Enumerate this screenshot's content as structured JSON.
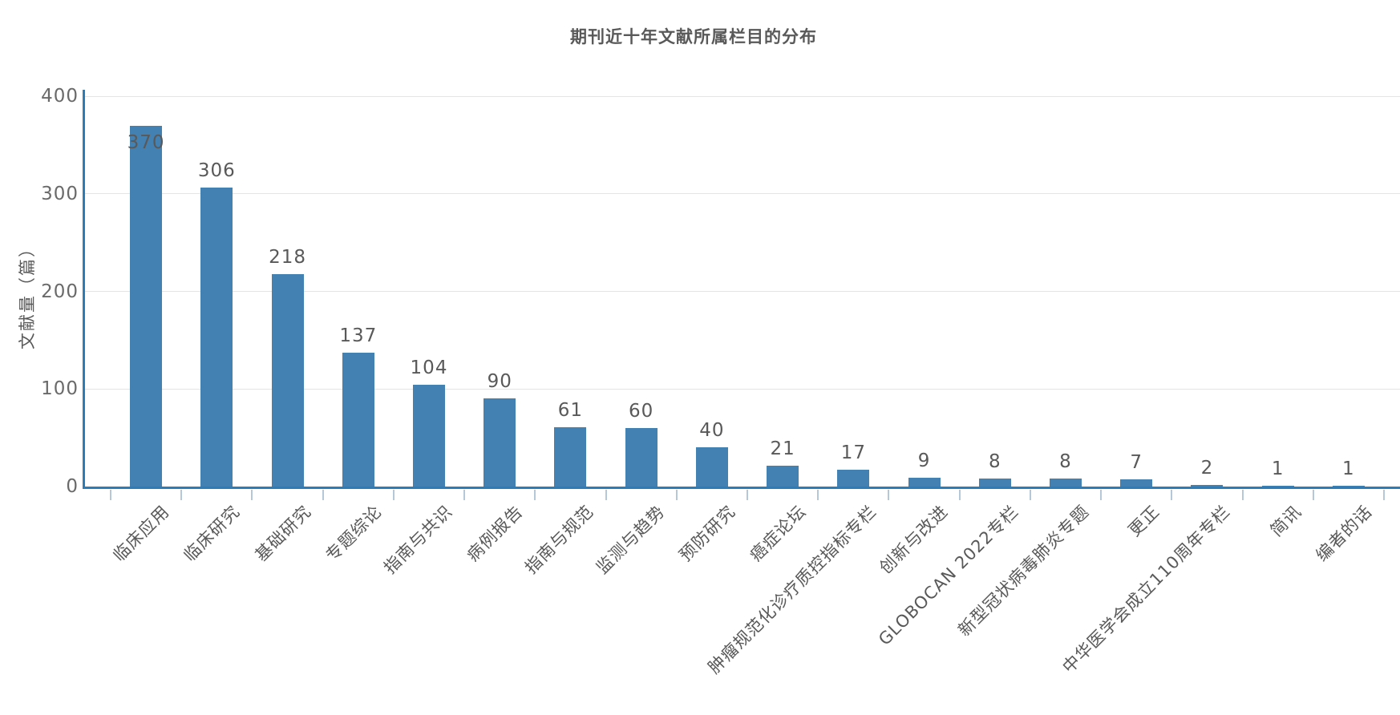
{
  "chart_data": {
    "type": "bar",
    "title": "期刊近十年文献所属栏目的分布",
    "ylabel": "文献量（篇）",
    "categories": [
      "临床应用",
      "临床研究",
      "基础研究",
      "专题综论",
      "指南与共识",
      "病例报告",
      "指南与规范",
      "监测与趋势",
      "预防研究",
      "癌症论坛",
      "肿瘤规范化诊疗质控指标专栏",
      "创新与改进",
      "GLOBOCAN 2022专栏",
      "新型冠状病毒肺炎专题",
      "更正",
      "中华医学会成立110周年专栏",
      "简讯",
      "编者的话"
    ],
    "values": [
      370,
      306,
      218,
      137,
      104,
      90,
      61,
      60,
      40,
      21,
      17,
      9,
      8,
      8,
      7,
      2,
      1,
      1
    ],
    "ylim": [
      0,
      400
    ],
    "yticks": [
      0,
      100,
      200,
      300,
      400
    ],
    "grid": true,
    "legend": "none",
    "colors": {
      "bar": "#4381b2",
      "axis": "#2b7cb9",
      "gridline": "#e4e4e4",
      "text": "#595959",
      "xtick": "#b5c8da"
    }
  }
}
